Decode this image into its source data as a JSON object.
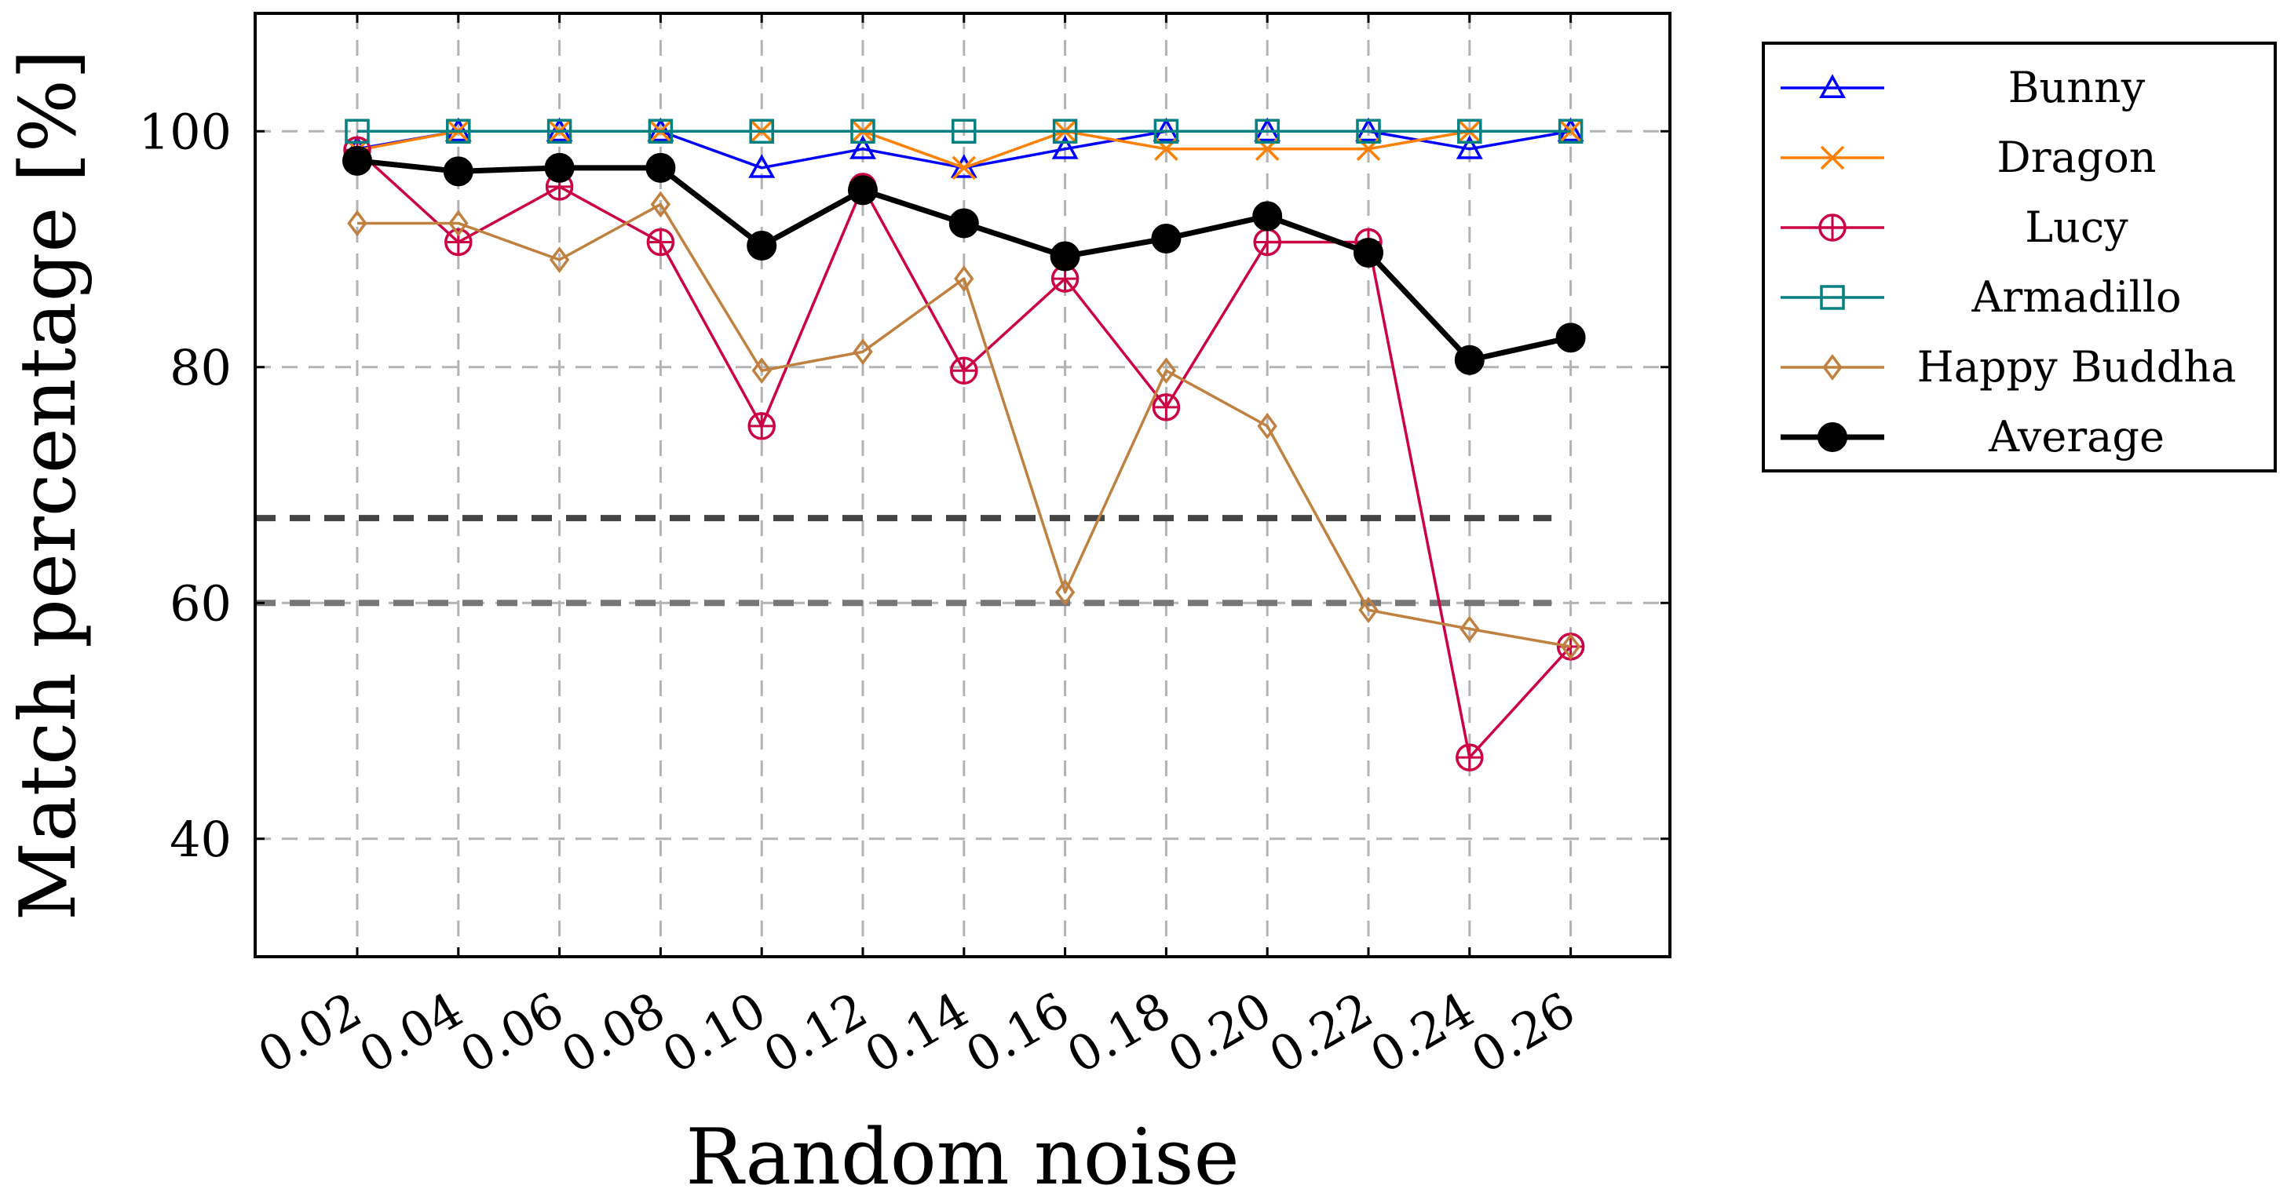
{
  "chart_data": {
    "type": "line",
    "title": "",
    "xlabel": "Random noise",
    "ylabel": "Match percentage [%]",
    "ylim": [
      30,
      110
    ],
    "yticks": [
      40,
      60,
      80,
      100
    ],
    "grid": true,
    "legend_position": "outside-right",
    "categories": [
      "0.02",
      "0.04",
      "0.06",
      "0.08",
      "0.10",
      "0.12",
      "0.14",
      "0.16",
      "0.18",
      "0.20",
      "0.22",
      "0.24",
      "0.26"
    ],
    "series": [
      {
        "name": "Bunny",
        "color": "#0000ff",
        "marker": "triangle",
        "values": [
          98.5,
          100,
          100,
          100,
          96.9,
          98.5,
          96.9,
          98.5,
          100,
          100,
          100,
          98.5,
          100
        ]
      },
      {
        "name": "Dragon",
        "color": "#ff8000",
        "marker": "x",
        "values": [
          98.4,
          100,
          100,
          100,
          100,
          100,
          96.9,
          100,
          98.5,
          98.5,
          98.5,
          100,
          100
        ]
      },
      {
        "name": "Lucy",
        "color": "#cc0044",
        "marker": "oplus",
        "values": [
          98.4,
          90.6,
          95.3,
          90.6,
          75,
          95.3,
          79.7,
          87.5,
          76.6,
          90.6,
          90.6,
          46.9,
          56.3
        ]
      },
      {
        "name": "Armadillo",
        "color": "#008080",
        "marker": "square",
        "values": [
          100,
          100,
          100,
          100,
          100,
          100,
          100,
          100,
          100,
          100,
          100,
          100,
          100
        ]
      },
      {
        "name": "Happy Buddha",
        "color": "#bf8040",
        "marker": "diamond",
        "values": [
          92.2,
          92.2,
          89.1,
          93.8,
          79.7,
          81.3,
          87.5,
          60.9,
          79.7,
          75,
          59.4,
          57.8,
          56.3
        ]
      },
      {
        "name": "Average",
        "color": "#000000",
        "marker": "filled-circle",
        "values": [
          97.5,
          96.6,
          96.9,
          96.9,
          90.3,
          95.0,
          92.2,
          89.4,
          90.9,
          92.8,
          89.7,
          80.6,
          82.5
        ]
      }
    ],
    "reference_lines": [
      {
        "name": "upper-threshold",
        "y": 67.2,
        "x_end": 0.25,
        "color": "#444444"
      },
      {
        "name": "lower-threshold",
        "y": 60,
        "x_end": 0.25,
        "color": "#777777"
      }
    ]
  }
}
